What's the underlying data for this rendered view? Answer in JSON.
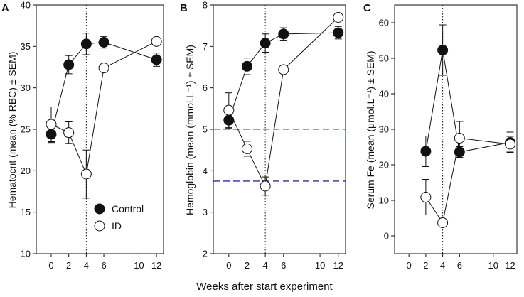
{
  "figure": {
    "xlabel": "Weeks after start experiment",
    "legend": [
      {
        "label": "Control",
        "marker": "filled-circle"
      },
      {
        "label": "ID",
        "marker": "open-circle"
      }
    ]
  },
  "chart_data": [
    {
      "type": "line",
      "panel_label": "A",
      "ylabel": "Hematocrit (mean (% RBC) ± SEM)",
      "x_ticks": [
        0,
        2,
        4,
        6,
        10,
        12
      ],
      "ylim": [
        10,
        40
      ],
      "y_ticks": [
        10,
        15,
        20,
        25,
        30,
        35,
        40
      ],
      "vline_x": 4,
      "hlines": [],
      "legend_position": "bottom-right",
      "series": [
        {
          "name": "Control",
          "marker": "filled",
          "x": [
            0,
            2,
            4,
            6,
            12
          ],
          "y": [
            24.4,
            32.8,
            35.3,
            35.5,
            33.4
          ],
          "err": [
            1.0,
            1.1,
            1.3,
            0.7,
            0.8
          ]
        },
        {
          "name": "ID",
          "marker": "open",
          "x": [
            0,
            2,
            4,
            6,
            12
          ],
          "y": [
            25.6,
            24.6,
            19.6,
            32.4,
            35.6
          ],
          "err": [
            2.1,
            1.3,
            2.9,
            0,
            0
          ]
        }
      ]
    },
    {
      "type": "line",
      "panel_label": "B",
      "ylabel": "Hemoglobin (mean (mmol.L⁻¹) ± SEM)",
      "x_ticks": [
        0,
        2,
        4,
        6,
        10,
        12
      ],
      "ylim": [
        2,
        8
      ],
      "y_ticks": [
        2,
        3,
        4,
        5,
        6,
        7,
        8
      ],
      "vline_x": 4,
      "hlines": [
        {
          "y": 5.0,
          "color": "#e8343b",
          "style": "dashed"
        },
        {
          "y": 3.75,
          "color": "#2b2fa8",
          "style": "dashed"
        }
      ],
      "series": [
        {
          "name": "Control",
          "marker": "filled",
          "x": [
            0,
            2,
            4,
            6,
            12
          ],
          "y": [
            5.22,
            6.52,
            7.08,
            7.3,
            7.33
          ],
          "err": [
            0.2,
            0.2,
            0.22,
            0.15,
            0.15
          ]
        },
        {
          "name": "ID",
          "marker": "open",
          "x": [
            0,
            2,
            4,
            6,
            12
          ],
          "y": [
            5.46,
            4.53,
            3.63,
            6.44,
            7.7
          ],
          "err": [
            0.42,
            0.18,
            0.22,
            0,
            0
          ]
        }
      ]
    },
    {
      "type": "line",
      "panel_label": "C",
      "ylabel": "Serum Fe (mean (μmol.L⁻¹) ± SEM)",
      "x_ticks": [
        0,
        2,
        4,
        6,
        10,
        12
      ],
      "ylim": [
        -5,
        65
      ],
      "y_ticks": [
        0,
        10,
        20,
        30,
        40,
        50,
        60
      ],
      "vline_x": 4,
      "hlines": [],
      "series": [
        {
          "name": "Control",
          "marker": "filled",
          "x": [
            2,
            4,
            6,
            12
          ],
          "y": [
            23.8,
            52.3,
            23.6,
            26.3
          ],
          "err": [
            4.3,
            7.1,
            1.5,
            2.9
          ]
        },
        {
          "name": "ID",
          "marker": "open",
          "x": [
            2,
            4,
            6,
            12
          ],
          "y": [
            10.9,
            3.7,
            27.5,
            25.8
          ],
          "err": [
            5.0,
            0.5,
            4.7,
            2.2
          ]
        }
      ]
    }
  ]
}
